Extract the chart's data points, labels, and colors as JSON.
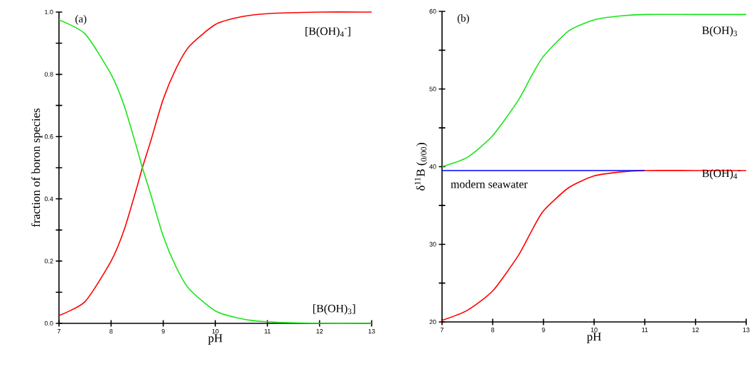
{
  "chart_data": [
    {
      "type": "line",
      "title": "(a)",
      "xlabel": "pH",
      "ylabel": "fraction of boron species",
      "xlim": [
        7,
        13
      ],
      "ylim": [
        0,
        1
      ],
      "xticks": [
        7,
        8,
        9,
        10,
        11,
        12,
        13
      ],
      "yticks": [
        {
          "value": 0,
          "label": "0.0"
        },
        {
          "value": 0.1,
          "label": null
        },
        {
          "value": 0.2,
          "label": "0.2"
        },
        {
          "value": 0.3,
          "label": null
        },
        {
          "value": 0.4,
          "label": "0.4"
        },
        {
          "value": 0.5,
          "label": null
        },
        {
          "value": 0.6,
          "label": "0.6"
        },
        {
          "value": 0.7,
          "label": null
        },
        {
          "value": 0.8,
          "label": "0.8"
        },
        {
          "value": 0.9,
          "label": null
        },
        {
          "value": 1,
          "label": "1.0"
        }
      ],
      "marker": "none",
      "line_style": "solid",
      "grid": false,
      "x": [
        7,
        7.5,
        8,
        8.25,
        8.5,
        8.6,
        8.75,
        9,
        9.25,
        9.5,
        10,
        10.5,
        11,
        12,
        13
      ],
      "series": [
        {
          "name": "[B(OH)$_{4}$$^{-}$]",
          "color": "#ff0000",
          "values": [
            0.025,
            0.07,
            0.2,
            0.3,
            0.44,
            0.5,
            0.58,
            0.72,
            0.82,
            0.89,
            0.96,
            0.985,
            0.995,
            1,
            1
          ]
        },
        {
          "name": "[B(OH)$_{3}$]",
          "color": "#19e619",
          "values": [
            0.975,
            0.93,
            0.8,
            0.7,
            0.56,
            0.5,
            0.42,
            0.28,
            0.18,
            0.11,
            0.04,
            0.015,
            0.005,
            0,
            0
          ]
        }
      ]
    },
    {
      "type": "line",
      "title": "(b)",
      "xlabel": "pH",
      "ylabel": "δ$^{11}$B ($_{0/00}$)",
      "xlim": [
        7,
        13
      ],
      "ylim": [
        20,
        60
      ],
      "xticks": [
        7,
        8,
        9,
        10,
        11,
        12,
        13
      ],
      "yticks": [
        20,
        {
          "value": 25,
          "label": null
        },
        30,
        {
          "value": 35,
          "label": null
        },
        40,
        {
          "value": 45,
          "label": null
        },
        50,
        {
          "value": 55,
          "label": null
        },
        60
      ],
      "marker": "none",
      "line_style": "solid",
      "grid": false,
      "x": [
        7,
        7.5,
        8,
        8.5,
        8.75,
        9,
        9.5,
        10,
        10.5,
        11,
        12,
        13
      ],
      "series": [
        {
          "name": "B(OH)$_{3}$",
          "color": "#19e619",
          "values": [
            40,
            41.2,
            44,
            48.5,
            51.5,
            54.2,
            57.5,
            58.9,
            59.4,
            59.6,
            59.6,
            59.6
          ]
        },
        {
          "name": "B(OH)$_{4}$$^{-}$",
          "color": "#ff0000",
          "values": [
            20.2,
            21.5,
            24,
            28.5,
            31.5,
            34.3,
            37.3,
            38.8,
            39.3,
            39.5,
            39.5,
            39.5
          ]
        },
        {
          "name": "modern seawater",
          "color": "#0000ff",
          "x": [
            7,
            11
          ],
          "values": [
            39.5,
            39.5
          ]
        }
      ]
    }
  ]
}
